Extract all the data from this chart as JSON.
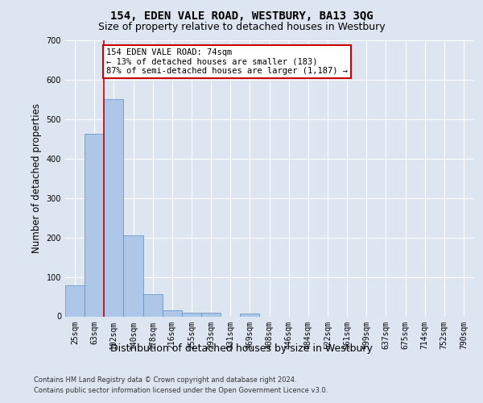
{
  "title": "154, EDEN VALE ROAD, WESTBURY, BA13 3QG",
  "subtitle": "Size of property relative to detached houses in Westbury",
  "xlabel": "Distribution of detached houses by size in Westbury",
  "ylabel": "Number of detached properties",
  "categories": [
    "25sqm",
    "63sqm",
    "102sqm",
    "140sqm",
    "178sqm",
    "216sqm",
    "255sqm",
    "293sqm",
    "331sqm",
    "369sqm",
    "408sqm",
    "446sqm",
    "484sqm",
    "522sqm",
    "561sqm",
    "599sqm",
    "637sqm",
    "675sqm",
    "714sqm",
    "752sqm",
    "790sqm"
  ],
  "bar_heights": [
    78,
    463,
    550,
    206,
    57,
    15,
    10,
    10,
    0,
    8,
    0,
    0,
    0,
    0,
    0,
    0,
    0,
    0,
    0,
    0,
    0
  ],
  "bar_color": "#aec6e8",
  "bar_edge_color": "#5a8fc0",
  "ylim": [
    0,
    700
  ],
  "yticks": [
    0,
    100,
    200,
    300,
    400,
    500,
    600,
    700
  ],
  "red_line_x": 1.5,
  "annotation_text": "154 EDEN VALE ROAD: 74sqm\n← 13% of detached houses are smaller (183)\n87% of semi-detached houses are larger (1,187) →",
  "annotation_box_color": "#ffffff",
  "annotation_box_edge": "#cc0000",
  "footer_line1": "Contains HM Land Registry data © Crown copyright and database right 2024.",
  "footer_line2": "Contains public sector information licensed under the Open Government Licence v3.0.",
  "bg_color": "#dde6f0",
  "plot_bg_color": "#dde6f0",
  "grid_color": "#ffffff",
  "title_fontsize": 10,
  "subtitle_fontsize": 9,
  "tick_fontsize": 7,
  "ylabel_fontsize": 8.5,
  "xlabel_fontsize": 9,
  "footer_fontsize": 6,
  "ann_fontsize": 7.5
}
